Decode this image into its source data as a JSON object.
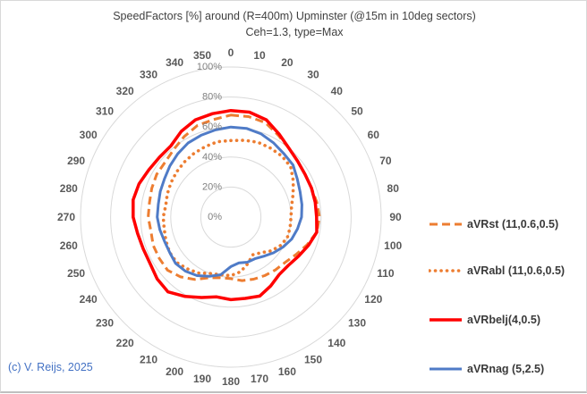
{
  "title": "SpeedFactors [%] around (R=400m) Upminster (@15m in 10deg sectors)",
  "subtitle": "Ceh=1.3, type=Max",
  "copyright": "(c) V. Reijs, 2025",
  "colors": {
    "orange": "#ED7D31",
    "red": "#FF0000",
    "blue": "#4F7BC7",
    "grid": "#D9D9D9",
    "angle_labels": "#595959",
    "radial_labels": "#7F7F7F",
    "title_text": "#404040",
    "legend_text": "#3A3A3A",
    "copyright_text": "#4472C4"
  },
  "chart_data": {
    "type": "line",
    "subtype": "radar-polar",
    "grid": true,
    "legend_position": "right",
    "angle_step_deg": 10,
    "angle_labels": [
      "0",
      "10",
      "20",
      "30",
      "40",
      "50",
      "60",
      "70",
      "80",
      "90",
      "100",
      "110",
      "120",
      "130",
      "140",
      "150",
      "160",
      "170",
      "180",
      "190",
      "200",
      "210",
      "220",
      "230",
      "240",
      "250",
      "260",
      "270",
      "280",
      "290",
      "300",
      "310",
      "320",
      "330",
      "340",
      "350"
    ],
    "radial_ticks": [
      {
        "label": "0%",
        "value": 0
      },
      {
        "label": "20%",
        "value": 20
      },
      {
        "label": "40%",
        "value": 40
      },
      {
        "label": "60%",
        "value": 60
      },
      {
        "label": "80%",
        "value": 80
      },
      {
        "label": "100%",
        "value": 100
      }
    ],
    "rmax": 100,
    "series": [
      {
        "name": "aVRst (11,0.6,0.5)",
        "color": "#ED7D31",
        "style": "dashed",
        "width": 3,
        "values": [
          68,
          68,
          67,
          63,
          60,
          58,
          57,
          57,
          58,
          59,
          58,
          54,
          50,
          47,
          46,
          45,
          44,
          43,
          41,
          41,
          43,
          48,
          52,
          55,
          55,
          55,
          54,
          55,
          55,
          56,
          57,
          57,
          59,
          62,
          65,
          66
        ]
      },
      {
        "name": "aVRabl (11,0.6,0.5)",
        "color": "#ED7D31",
        "style": "dotted",
        "width": 3.6,
        "values": [
          51,
          52,
          53,
          53,
          53,
          52,
          48,
          44,
          41,
          40,
          40,
          40,
          38,
          35,
          31,
          29,
          33,
          37,
          39,
          39,
          40,
          43,
          45,
          47,
          47,
          46,
          45,
          45,
          44,
          45,
          46,
          47,
          48,
          49,
          50,
          51
        ]
      },
      {
        "name": "aVRbelj(4,0.5)",
        "color": "#FF0000",
        "style": "solid",
        "width": 3.5,
        "values": [
          71,
          71,
          69,
          64,
          60,
          58,
          57,
          57,
          57,
          57,
          58,
          55,
          52,
          50,
          50,
          53,
          56,
          55,
          55,
          54,
          57,
          61,
          65,
          64,
          62,
          62,
          63,
          65,
          66,
          65,
          63,
          62,
          62,
          66,
          69,
          70
        ]
      },
      {
        "name": "aVRnag (5,2.5)",
        "color": "#4F7BC7",
        "style": "solid",
        "width": 3,
        "values": [
          60,
          60,
          59,
          57,
          55,
          54,
          51,
          49,
          48,
          47,
          45,
          43,
          40,
          37,
          34,
          32,
          32,
          31,
          33,
          39,
          42,
          45,
          47,
          48,
          47,
          47,
          48,
          49,
          49,
          50,
          51,
          53,
          55,
          57,
          58,
          59
        ]
      }
    ]
  }
}
